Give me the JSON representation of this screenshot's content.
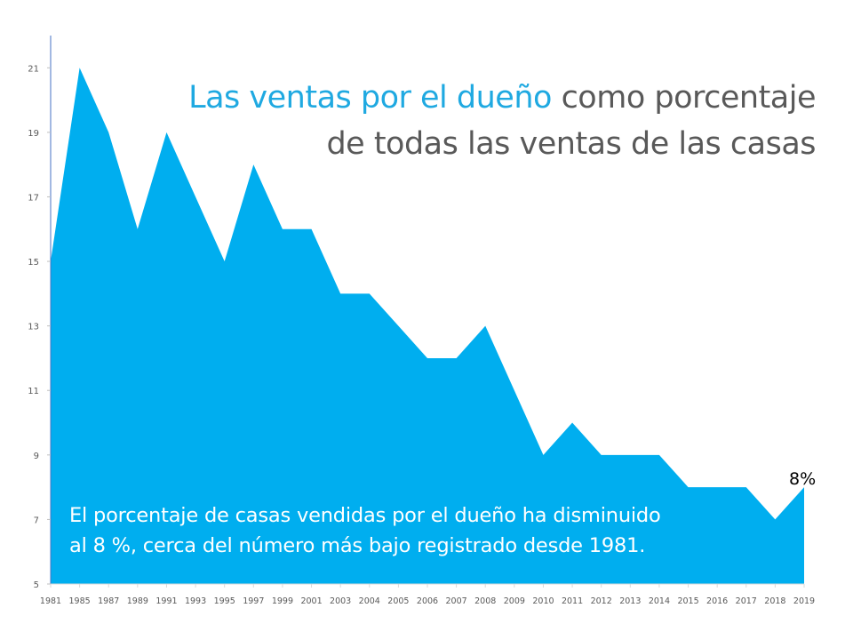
{
  "title": {
    "highlight": "Las ventas por el dueño",
    "rest_line1": " como porcentaje",
    "line2": "de todas las ventas de las casas"
  },
  "note": {
    "line1": "El porcentaje de casas vendidas por el dueño ha disminuido",
    "line2": "al 8 %, cerca del número más bajo registrado desde 1981."
  },
  "end_label": "8%",
  "colors": {
    "fill": "#00AEEF",
    "title_highlight": "#1FA9E1",
    "title_text": "#595959",
    "axis": "#4472C4"
  },
  "chart_data": {
    "type": "area",
    "categories": [
      "1981",
      "1985",
      "1987",
      "1989",
      "1991",
      "1993",
      "1995",
      "1997",
      "1999",
      "2001",
      "2003",
      "2004",
      "2005",
      "2006",
      "2007",
      "2008",
      "2009",
      "2010",
      "2011",
      "2012",
      "2013",
      "2014",
      "2015",
      "2016",
      "2017",
      "2018",
      "2019"
    ],
    "values": [
      15,
      21,
      19,
      16,
      19,
      17,
      15,
      18,
      16,
      16,
      14,
      14,
      13,
      12,
      12,
      13,
      11,
      9,
      10,
      9,
      9,
      9,
      8,
      8,
      8,
      7,
      8
    ],
    "ylim": [
      5,
      22
    ],
    "yticks": [
      5,
      7,
      9,
      11,
      13,
      15,
      17,
      19,
      21
    ],
    "grid": false,
    "legend": "none"
  }
}
